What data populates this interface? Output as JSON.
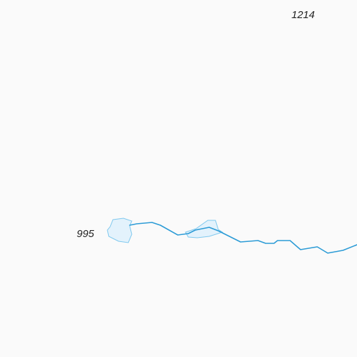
{
  "map": {
    "background_color": "#fafafa",
    "water_color": "#2b9bd6",
    "lake_fill": "#e3f2fc",
    "lake_stroke": "#7ec8ee",
    "elevation_labels": [
      {
        "value": "1214"
      },
      {
        "value": "995"
      }
    ],
    "features": [
      {
        "type": "stream",
        "name": ""
      },
      {
        "type": "lake",
        "name": ""
      },
      {
        "type": "lake",
        "name": ""
      }
    ]
  }
}
